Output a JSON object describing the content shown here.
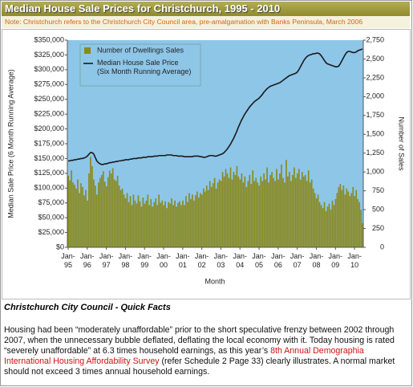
{
  "header": {
    "title": "Median House Sale Prices for Christchurch, 1995 - 2010",
    "note": "Note: Christchurch refers to the Christchurch City Council area, pre-amalgamation with Banks Peninsula, March 2006"
  },
  "chart_data": {
    "type": "bar-line",
    "ylabel": "Median Sale Price (6 Month Running Average)",
    "y2label": "Number of Sales",
    "xlabel": "Month",
    "ylim": [
      0,
      350000
    ],
    "yticks": [
      {
        "value": 0,
        "label": "$0"
      },
      {
        "value": 25000,
        "label": "$25,000"
      },
      {
        "value": 50000,
        "label": "$50,000"
      },
      {
        "value": 75000,
        "label": "$75,000"
      },
      {
        "value": 100000,
        "label": "$100,000"
      },
      {
        "value": 125000,
        "label": "$125,000"
      },
      {
        "value": 150000,
        "label": "$150,000"
      },
      {
        "value": 175000,
        "label": "$175,000"
      },
      {
        "value": 200000,
        "label": "$200,000"
      },
      {
        "value": 225000,
        "label": "$225,000"
      },
      {
        "value": 250000,
        "label": "$250,000"
      },
      {
        "value": 275000,
        "label": "$275,000"
      },
      {
        "value": 300000,
        "label": "$300,000"
      },
      {
        "value": 325000,
        "label": "$325,000"
      },
      {
        "value": 350000,
        "label": "$350,000"
      }
    ],
    "y2lim": [
      0,
      2750
    ],
    "y2ticks": [
      0,
      250,
      500,
      750,
      {
        "value": 1000,
        "label": "1,000"
      },
      {
        "value": 1250,
        "label": "1,250"
      },
      {
        "value": 1500,
        "label": "1,500"
      },
      {
        "value": 1750,
        "label": "1,750"
      },
      {
        "value": 2000,
        "label": "2,000"
      },
      {
        "value": 2250,
        "label": "2,250"
      },
      {
        "value": 2500,
        "label": "2,500"
      },
      {
        "value": 2750,
        "label": "2,750"
      }
    ],
    "legend": "top-left",
    "categories": [
      "Jan-95",
      null,
      null,
      null,
      null,
      null,
      null,
      null,
      null,
      null,
      null,
      null,
      "Jan-96",
      null,
      null,
      null,
      null,
      null,
      null,
      null,
      null,
      null,
      null,
      null,
      "Jan-97",
      null,
      null,
      null,
      null,
      null,
      null,
      null,
      null,
      null,
      null,
      null,
      "Jan-98",
      null,
      null,
      null,
      null,
      null,
      null,
      null,
      null,
      null,
      null,
      null,
      "Jan-99",
      null,
      null,
      null,
      null,
      null,
      null,
      null,
      null,
      null,
      null,
      null,
      "Jan-00",
      null,
      null,
      null,
      null,
      null,
      null,
      null,
      null,
      null,
      null,
      null,
      "Jan-01",
      null,
      null,
      null,
      null,
      null,
      null,
      null,
      null,
      null,
      null,
      null,
      "Jan-02",
      null,
      null,
      null,
      null,
      null,
      null,
      null,
      null,
      null,
      null,
      null,
      "Jan-03",
      null,
      null,
      null,
      null,
      null,
      null,
      null,
      null,
      null,
      null,
      null,
      "Jan-04",
      null,
      null,
      null,
      null,
      null,
      null,
      null,
      null,
      null,
      null,
      null,
      "Jan-05",
      null,
      null,
      null,
      null,
      null,
      null,
      null,
      null,
      null,
      null,
      null,
      "Jan-06",
      null,
      null,
      null,
      null,
      null,
      null,
      null,
      null,
      null,
      null,
      null,
      "Jan-07",
      null,
      null,
      null,
      null,
      null,
      null,
      null,
      null,
      null,
      null,
      null,
      "Jan-08",
      null,
      null,
      null,
      null,
      null,
      null,
      null,
      null,
      null,
      null,
      null,
      "Jan-09",
      null,
      null,
      null,
      null,
      null,
      null,
      null,
      null,
      null,
      null,
      null,
      "Jan-10",
      null,
      null,
      null,
      null,
      null
    ],
    "series": [
      {
        "name": "Number of Dwellings Sales",
        "type": "bar",
        "axis": "y2",
        "color": "#8a8a1e",
        "values": [
          950,
          890,
          1020,
          860,
          830,
          780,
          900,
          720,
          850,
          800,
          690,
          760,
          620,
          980,
          1200,
          1080,
          900,
          820,
          700,
          860,
          920,
          960,
          1010,
          870,
          810,
          930,
          1020,
          980,
          1050,
          900,
          880,
          950,
          820,
          760,
          780,
          700,
          650,
          720,
          600,
          680,
          560,
          700,
          620,
          580,
          690,
          610,
          540,
          660,
          580,
          620,
          700,
          560,
          640,
          540,
          600,
          650,
          560,
          700,
          590,
          620,
          560,
          610,
          520,
          600,
          580,
          650,
          560,
          620,
          540,
          590,
          610,
          560,
          620,
          560,
          680,
          600,
          720,
          640,
          700,
          620,
          690,
          740,
          660,
          720,
          700,
          780,
          740,
          820,
          760,
          880,
          800,
          850,
          920,
          780,
          860,
          900,
          880,
          1000,
          940,
          1040,
          980,
          920,
          1060,
          900,
          1000,
          960,
          1080,
          940,
          900,
          980,
          860,
          940,
          800,
          880,
          960,
          840,
          1020,
          880,
          920,
          860,
          820,
          940,
          880,
          980,
          900,
          1060,
          860,
          960,
          1000,
          920,
          880,
          1040,
          900,
          980,
          1100,
          920,
          860,
          1160,
          940,
          1000,
          880,
          960,
          1060,
          920,
          980,
          1040,
          900,
          1000,
          940,
          960,
          880,
          1020,
          860,
          900,
          780,
          720,
          650,
          700,
          600,
          560,
          520,
          600,
          480,
          540,
          580,
          500,
          620,
          560,
          640,
          720,
          800,
          840,
          760,
          820,
          700,
          780,
          740,
          680,
          720,
          800,
          680,
          760,
          640,
          600,
          500,
          320
        ]
      },
      {
        "name": "Median House Sale Price (Six Month Running Average)",
        "type": "line",
        "color": "#1a1a1a",
        "values": [
          146000,
          146000,
          147000,
          147000,
          148000,
          148000,
          149000,
          149000,
          150000,
          150000,
          151000,
          152000,
          154000,
          157000,
          160000,
          160000,
          158000,
          152000,
          146000,
          143000,
          141000,
          140000,
          140000,
          141000,
          141000,
          142000,
          143000,
          143000,
          144000,
          144000,
          145000,
          145000,
          146000,
          146000,
          147000,
          147000,
          148000,
          148000,
          148000,
          149000,
          149000,
          150000,
          150000,
          150000,
          151000,
          151000,
          151000,
          152000,
          152000,
          152000,
          153000,
          153000,
          153000,
          153000,
          154000,
          154000,
          154000,
          155000,
          155000,
          155000,
          155000,
          155000,
          156000,
          156000,
          156000,
          156000,
          155000,
          155000,
          155000,
          154000,
          154000,
          154000,
          154000,
          153000,
          153000,
          153000,
          153000,
          153000,
          153000,
          154000,
          154000,
          154000,
          154000,
          153000,
          153000,
          152000,
          152000,
          153000,
          154000,
          155000,
          155000,
          155000,
          154000,
          154000,
          155000,
          156000,
          157000,
          158000,
          160000,
          163000,
          166000,
          170000,
          174000,
          179000,
          184000,
          190000,
          196000,
          203000,
          209000,
          215000,
          220000,
          225000,
          229000,
          233000,
          237000,
          240000,
          243000,
          246000,
          248000,
          250000,
          252000,
          255000,
          258000,
          262000,
          265000,
          268000,
          270000,
          272000,
          273000,
          274000,
          275000,
          276000,
          277000,
          278000,
          280000,
          282000,
          284000,
          286000,
          288000,
          290000,
          291000,
          292000,
          293000,
          294000,
          296000,
          300000,
          305000,
          310000,
          315000,
          319000,
          322000,
          324000,
          325000,
          326000,
          327000,
          327000,
          328000,
          328000,
          327000,
          324000,
          320000,
          316000,
          312000,
          310000,
          309000,
          308000,
          307000,
          306000,
          305000,
          305000,
          306000,
          310000,
          315000,
          320000,
          325000,
          329000,
          331000,
          331000,
          330000,
          329000,
          329000,
          330000,
          332000,
          333000,
          334000,
          335000
        ]
      }
    ]
  },
  "facts": {
    "heading": "Christchurch City Council - Quick Facts",
    "parts": [
      "Housing had been “moderately unaffordable” prior to the short speculative frenzy between 2002 through 2007, when the unnecessary bubble deflated, deflating the local economy with it. Today housing is rated “severely unaffordable” at 6.3 times household earnings, as this year’s ",
      "8th Annual Demographia International Housing Affordability Survey",
      " (refer Schedule 2 Page 33) clearly illustrates. A normal market should not exceed 3 times annual household earnings."
    ]
  }
}
